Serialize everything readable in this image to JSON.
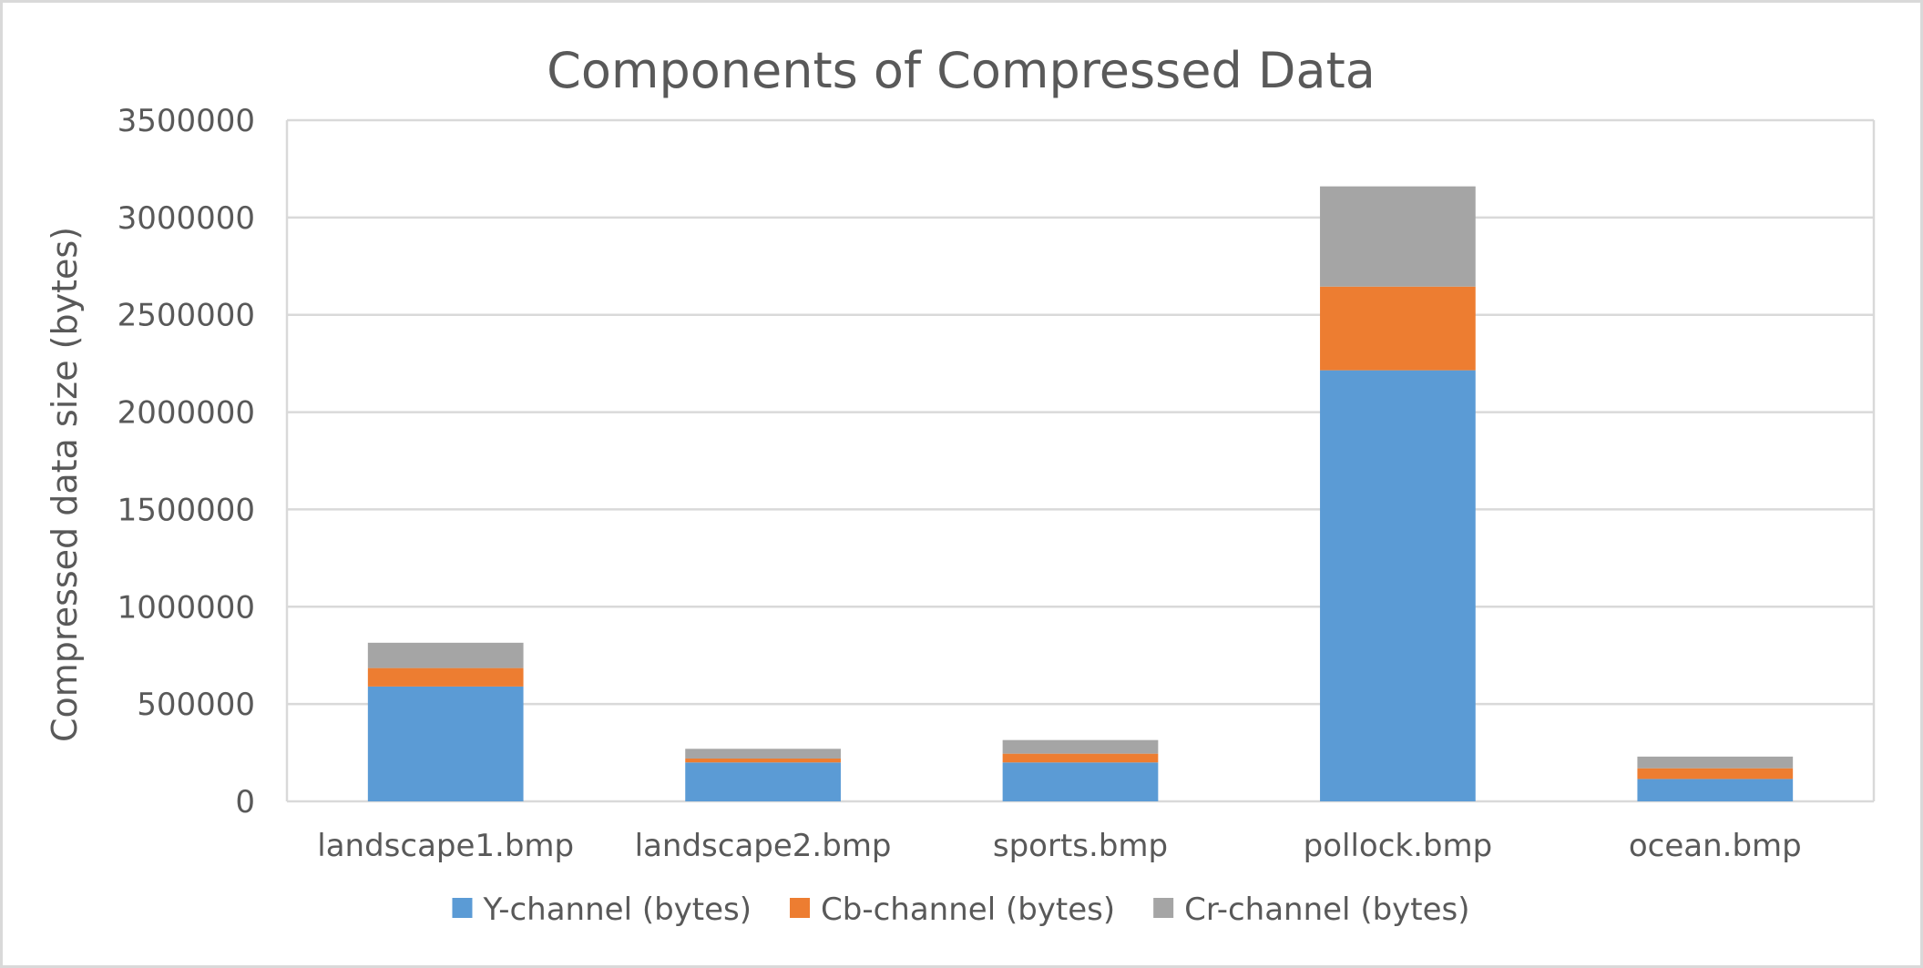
{
  "chart_data": {
    "type": "bar",
    "stacked": true,
    "title": "Components of Compressed Data",
    "xlabel": "",
    "ylabel": "Compressed data size (bytes)",
    "ylim": [
      0,
      3500000
    ],
    "yticks": [
      0,
      500000,
      1000000,
      1500000,
      2000000,
      2500000,
      3000000,
      3500000
    ],
    "ytick_labels": [
      "0",
      "500000",
      "1000000",
      "1500000",
      "2000000",
      "2500000",
      "3000000",
      "3500000"
    ],
    "grid": true,
    "legend": "bottom",
    "categories": [
      "landscape1.bmp",
      "landscape2.bmp",
      "sports.bmp",
      "pollock.bmp",
      "ocean.bmp"
    ],
    "series": [
      {
        "name": "Y-channel (bytes)",
        "color": "#5b9bd5",
        "values": [
          590000,
          200000,
          200000,
          2215000,
          115000
        ]
      },
      {
        "name": "Cb-channel (bytes)",
        "color": "#ed7d31",
        "values": [
          95000,
          20000,
          45000,
          430000,
          55000
        ]
      },
      {
        "name": "Cr-channel (bytes)",
        "color": "#a5a5a5",
        "values": [
          130000,
          50000,
          70000,
          515000,
          60000
        ]
      }
    ]
  }
}
